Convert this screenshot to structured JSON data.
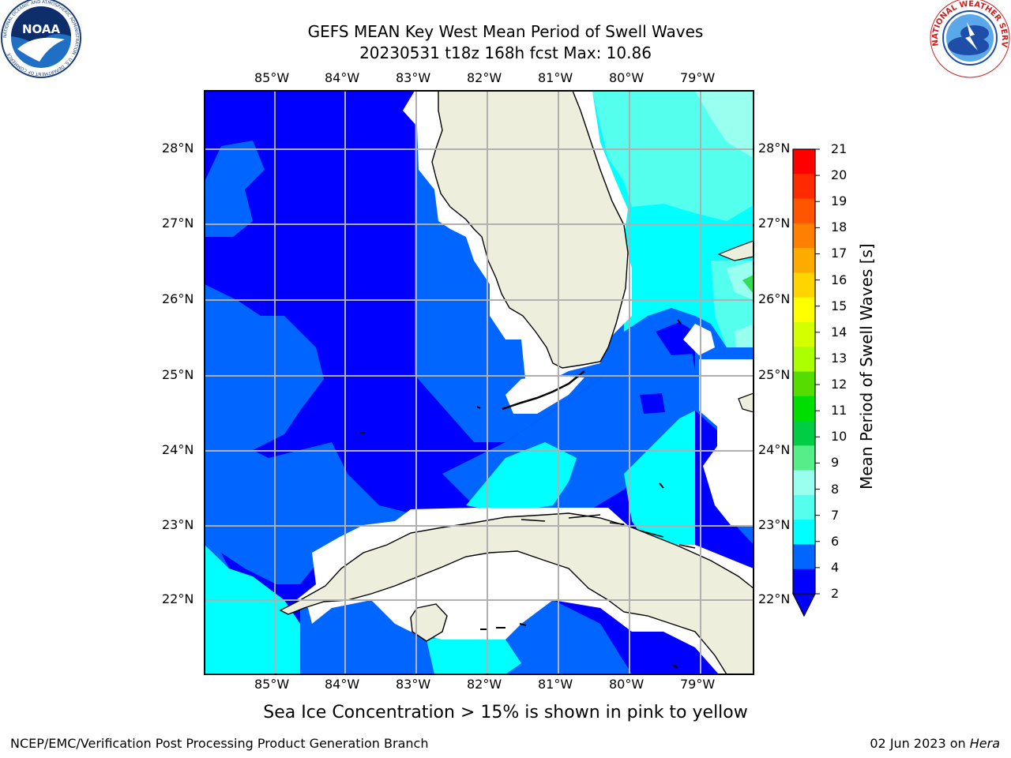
{
  "header": {
    "title_line1": "GEFS MEAN Key West Mean Period of Swell Waves",
    "title_line2": "20230531 t18z 168h fcst   Max: 10.86"
  },
  "logos": {
    "left": {
      "name": "NOAA",
      "ring_text": "NATIONAL OCEANIC AND ATMOSPHERIC ADMINISTRATION · U.S. DEPARTMENT OF COMMERCE"
    },
    "right": {
      "name": "NATIONAL WEATHER SERVICE"
    }
  },
  "map": {
    "lon_labels": [
      "85°W",
      "84°W",
      "83°W",
      "82°W",
      "81°W",
      "80°W",
      "79°W"
    ],
    "lat_labels": [
      "28°N",
      "27°N",
      "26°N",
      "25°N",
      "24°N",
      "23°N",
      "22°N"
    ],
    "land_color": "#eeeedd",
    "grid_color": "#b0b0b0"
  },
  "colorbar": {
    "title": "Mean Period of Swell Waves [s]",
    "ticks": [
      "21",
      "20",
      "19",
      "18",
      "17",
      "16",
      "15",
      "14",
      "13",
      "12",
      "11",
      "10",
      "9",
      "8",
      "7",
      "6",
      "4",
      "2"
    ],
    "colors": [
      "#ff0000",
      "#ff2a00",
      "#ff5500",
      "#ff8000",
      "#ffaa00",
      "#ffd400",
      "#ffff00",
      "#d4ff00",
      "#aaff00",
      "#55dd00",
      "#00dd00",
      "#00cc44",
      "#55ee88",
      "#99ffee",
      "#55ffee",
      "#00ffff",
      "#0066ff",
      "#0000ff"
    ]
  },
  "notes": {
    "sea_ice": "Sea Ice Concentration > 15% is shown in pink to yellow"
  },
  "footer": {
    "left": "NCEP/EMC/Verification Post Processing Product Generation Branch",
    "right_date": "02 Jun 2023 on ",
    "right_host": "Hera"
  }
}
